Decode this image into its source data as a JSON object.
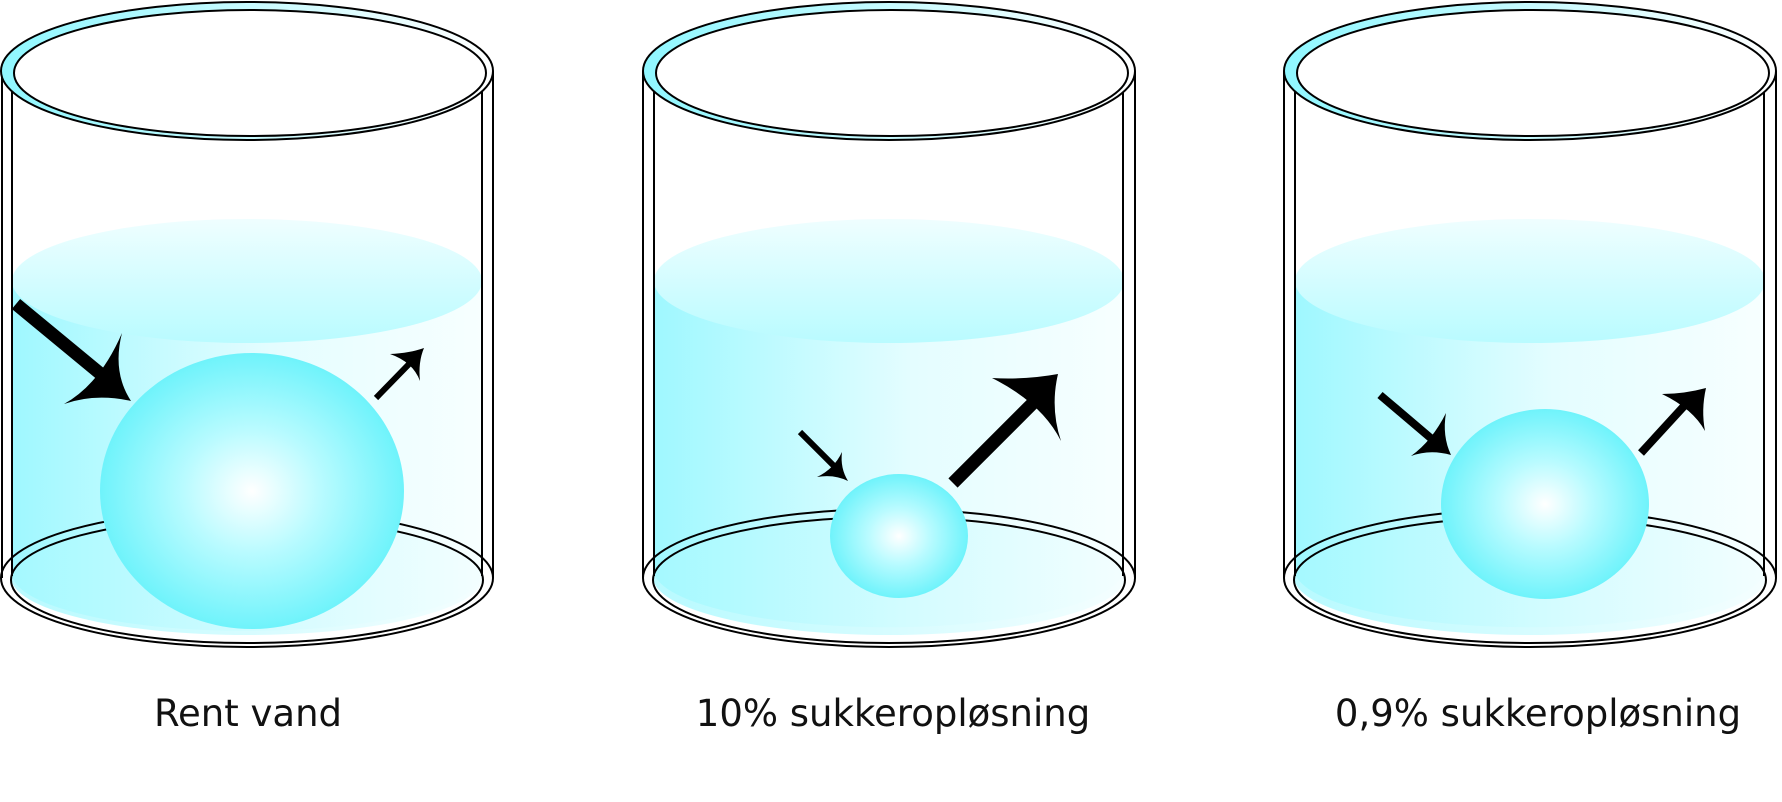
{
  "colors": {
    "water": "#7ff6ff",
    "water_light": "#e6fdff",
    "cell_edge": "#72f3fb",
    "cell_center": "#ffffff",
    "glass_outline": "#000000",
    "glass_rim_fill": "#bff9ff",
    "arrow": "#000000"
  },
  "beakers": [
    {
      "label": "Rent vand",
      "cell_state": "swollen",
      "inflow_arrow": "large",
      "outflow_arrow": "small"
    },
    {
      "label": "10% sukkeropløsning",
      "cell_state": "shrunken",
      "inflow_arrow": "small",
      "outflow_arrow": "large"
    },
    {
      "label": "0,9% sukkeropløsning",
      "cell_state": "normal",
      "inflow_arrow": "medium",
      "outflow_arrow": "medium"
    }
  ]
}
